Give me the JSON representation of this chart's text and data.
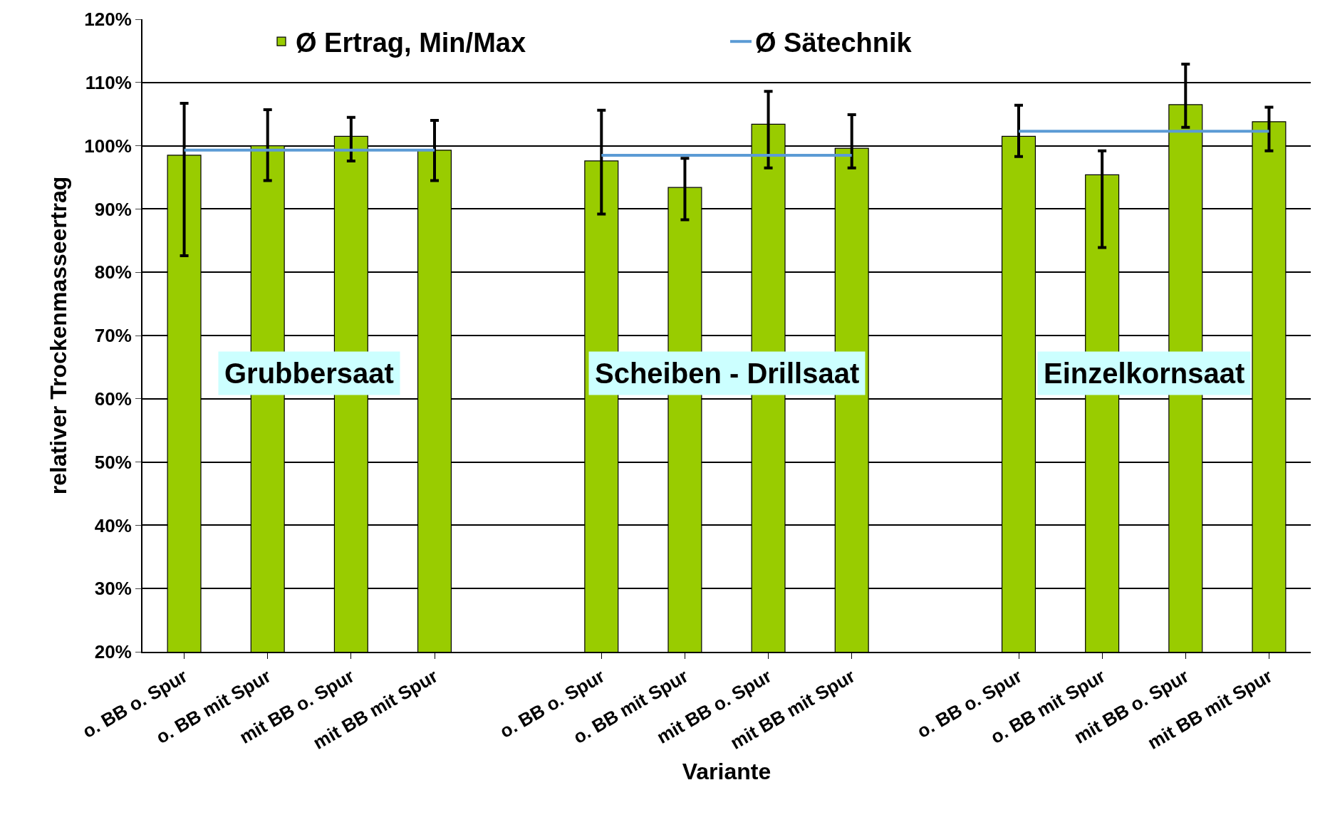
{
  "chart_data": {
    "type": "bar",
    "xlabel": "Variante",
    "ylabel": "relativer Trockenmasseertrag",
    "categories": [
      "o. BB o. Spur",
      "o. BB mit Spur",
      "mit BB o. Spur",
      "mit BB mit Spur",
      null,
      "o. BB o. Spur",
      "o. BB mit Spur",
      "mit BB o. Spur",
      "mit BB mit Spur",
      null,
      "o. BB o. Spur",
      "o. BB mit Spur",
      "mit BB o. Spur",
      "mit BB mit Spur"
    ],
    "series": [
      {
        "name": "Ø Ertrag, Min/Max",
        "color": "#99cc00",
        "values": [
          98.5,
          100.0,
          101.5,
          99.3,
          null,
          97.6,
          93.4,
          103.4,
          99.6,
          null,
          101.5,
          95.4,
          106.5,
          103.8
        ],
        "errors": [
          [
            82.6,
            106.7
          ],
          [
            94.5,
            105.7
          ],
          [
            97.6,
            104.5
          ],
          [
            94.5,
            104.0
          ],
          null,
          [
            89.2,
            105.6
          ],
          [
            88.3,
            98.0
          ],
          [
            96.5,
            108.6
          ],
          [
            96.5,
            104.9
          ],
          null,
          [
            98.3,
            106.4
          ],
          [
            83.9,
            99.2
          ],
          [
            102.9,
            112.9
          ],
          [
            99.2,
            106.1
          ]
        ]
      },
      {
        "name": "Ø Sätechnik",
        "type": "line",
        "color": "#5b9bd5",
        "values": [
          99.3,
          99.3,
          99.3,
          99.3,
          null,
          98.5,
          98.5,
          98.5,
          98.5,
          null,
          102.3,
          102.3,
          102.3,
          102.3
        ]
      }
    ],
    "ylim": [
      20,
      120
    ],
    "yticks": [
      {
        "value": 20,
        "label": "20%"
      },
      {
        "value": 30,
        "label": "30%"
      },
      {
        "value": 40,
        "label": "40%"
      },
      {
        "value": 50,
        "label": "50%"
      },
      {
        "value": 60,
        "label": "60%"
      },
      {
        "value": 70,
        "label": "70%"
      },
      {
        "value": 80,
        "label": "80%"
      },
      {
        "value": 90,
        "label": "90%"
      },
      {
        "value": 100,
        "label": "100%"
      },
      {
        "value": 110,
        "label": "110%"
      },
      {
        "value": 120,
        "label": "120%"
      }
    ],
    "grid": "y",
    "legend": "top",
    "marker": "none",
    "line_style": "solid",
    "annotations": [
      "Grubbersaat",
      "Scheiben - Drillsaat",
      "Einzelkornsaat"
    ]
  }
}
